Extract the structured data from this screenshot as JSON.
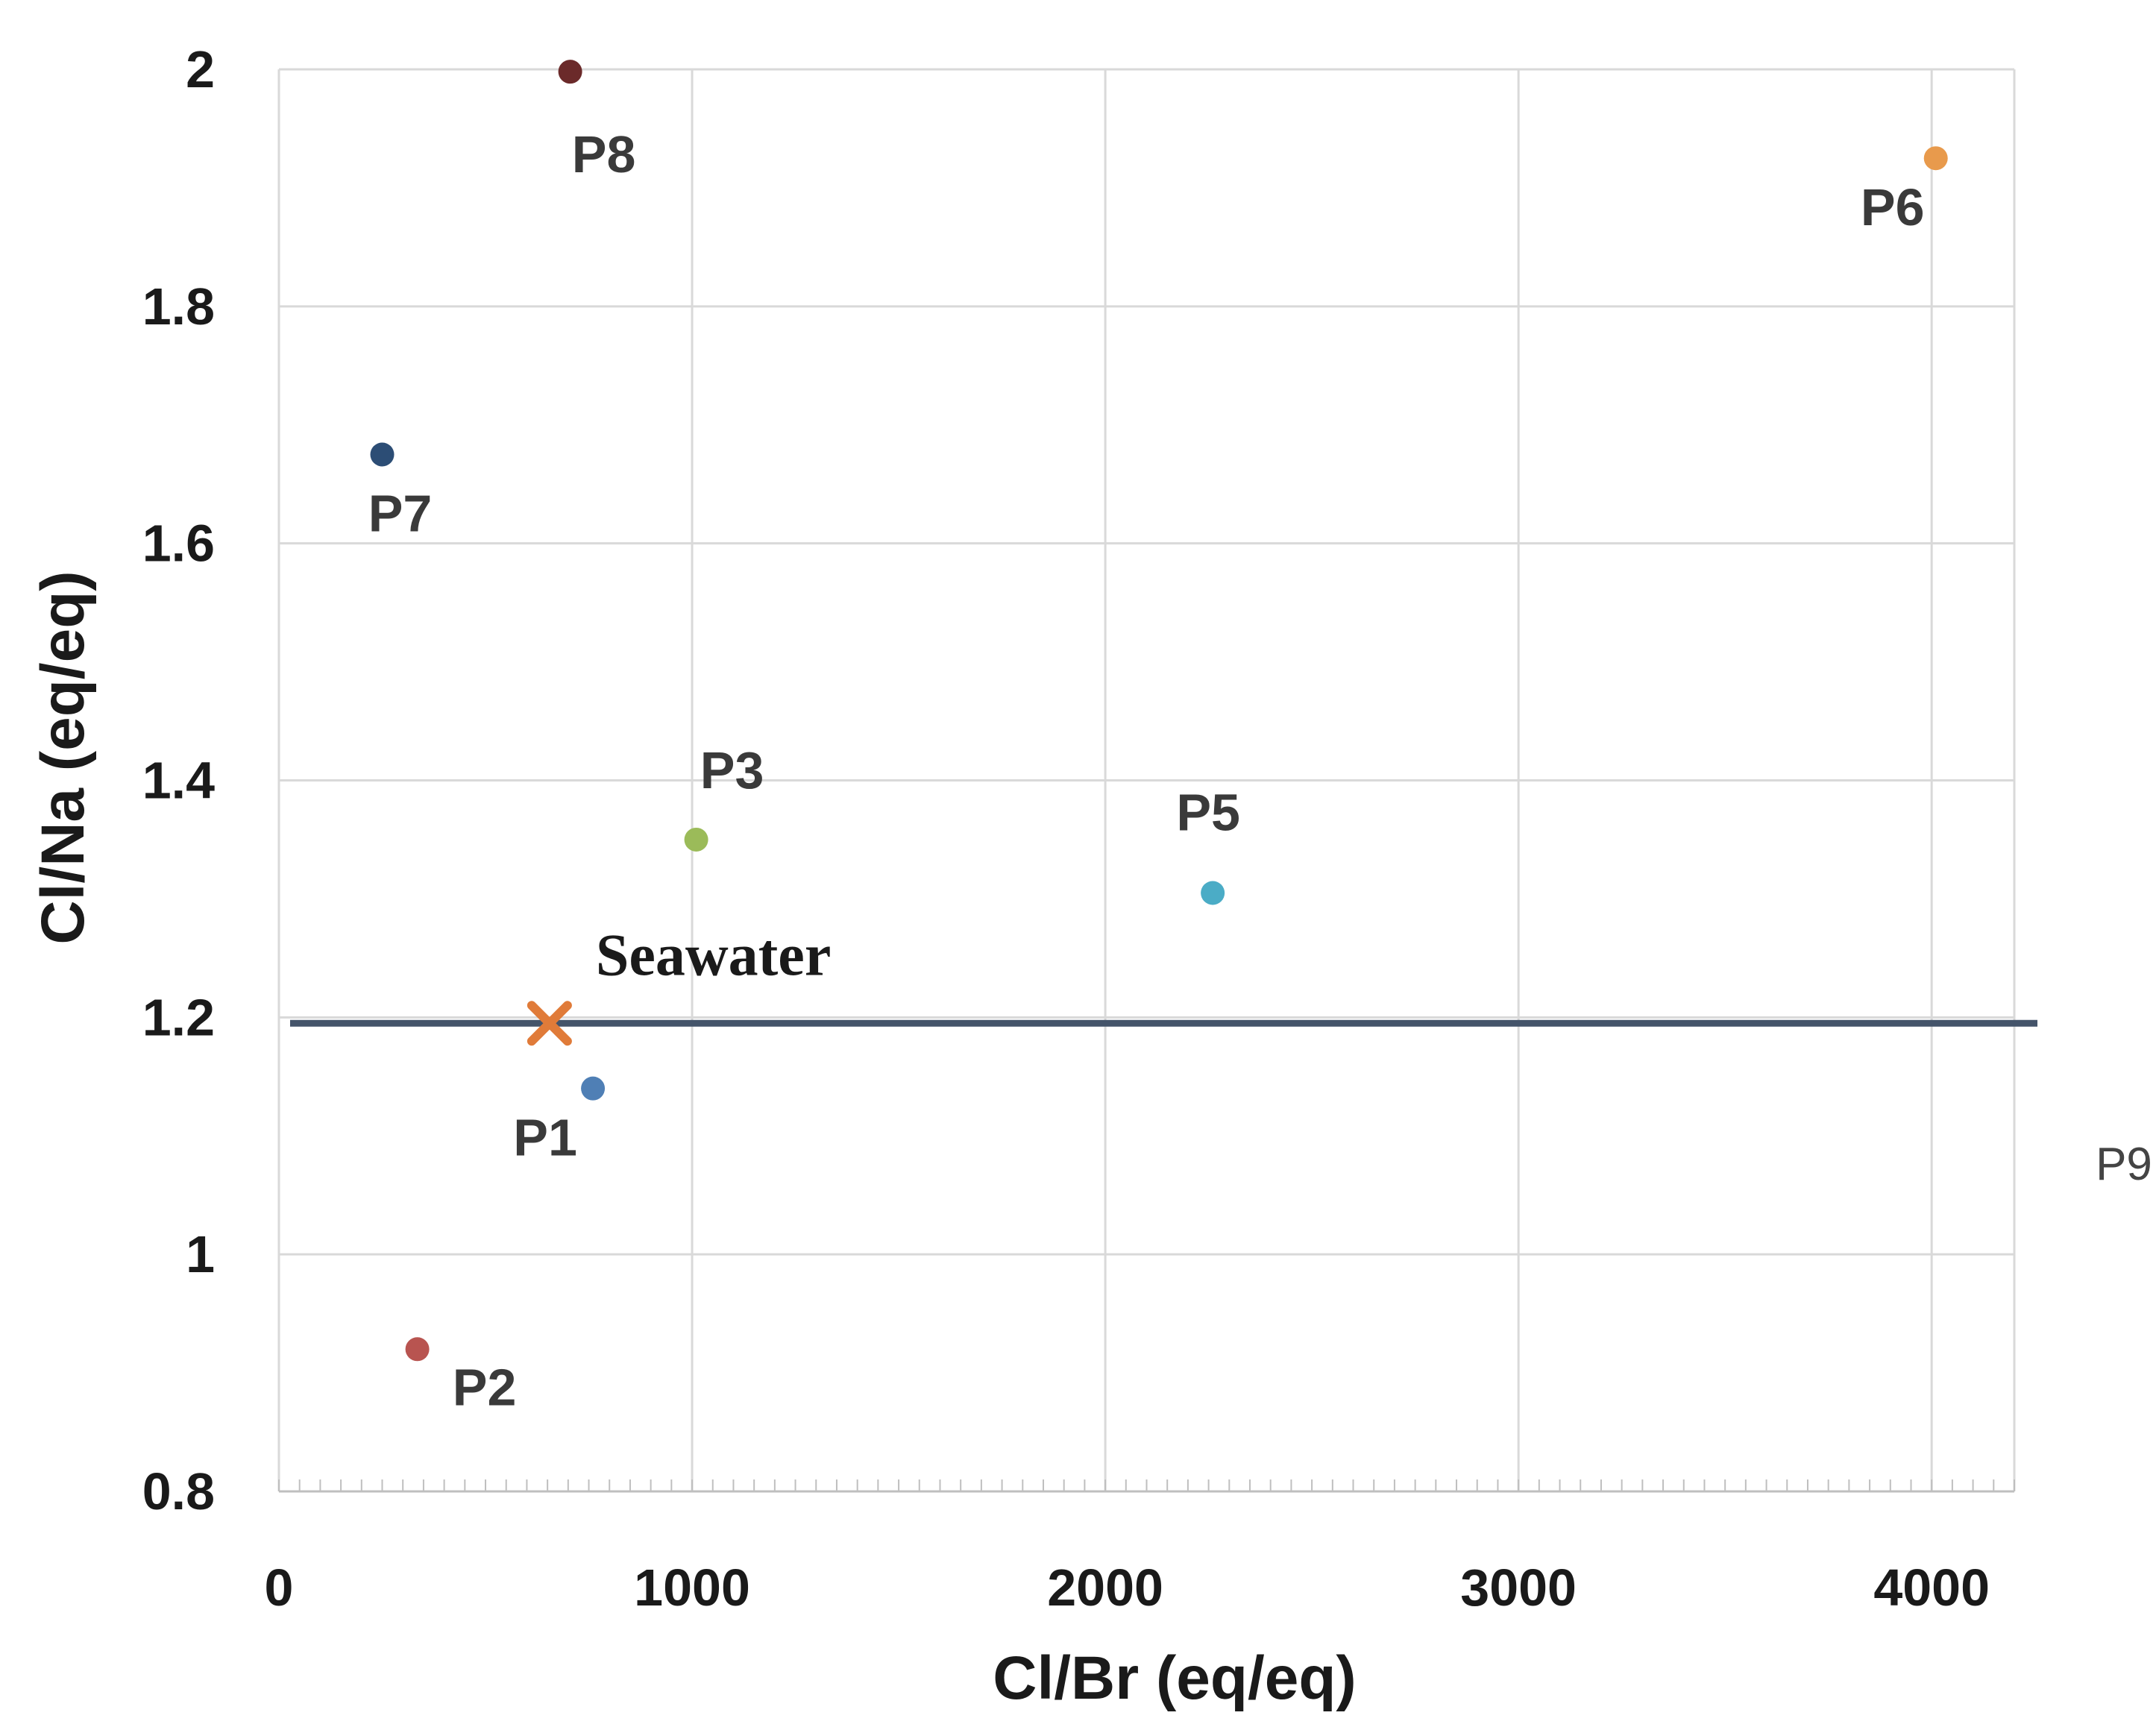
{
  "chart_data": {
    "type": "scatter",
    "title": "",
    "xlabel": "Cl/Br (eq/eq)",
    "ylabel": "Cl/Na  (eq/eq)",
    "xlim": [
      0,
      4200
    ],
    "ylim": [
      0.8,
      2.0
    ],
    "x_ticks": [
      0,
      1000,
      2000,
      3000,
      4000
    ],
    "x_tick_labels": [
      "0",
      "1000",
      "2000",
      "3000",
      "4000"
    ],
    "y_ticks": [
      0.8,
      1.0,
      1.2,
      1.4,
      1.6,
      1.8,
      2.0
    ],
    "y_tick_labels": [
      "0.8",
      "1",
      "1.2",
      "1.4",
      "1.6",
      "1.8",
      "2"
    ],
    "grid": true,
    "legend": "none",
    "points": [
      {
        "label": "P1",
        "x": 760,
        "y": 1.14,
        "color": "#4f7fb5"
      },
      {
        "label": "P2",
        "x": 335,
        "y": 0.92,
        "color": "#b85450"
      },
      {
        "label": "P3",
        "x": 1010,
        "y": 1.35,
        "color": "#9bbb59"
      },
      {
        "label": "P5",
        "x": 2260,
        "y": 1.305,
        "color": "#4bacc6"
      },
      {
        "label": "P6",
        "x": 4010,
        "y": 1.925,
        "color": "#e89a4c"
      },
      {
        "label": "P7",
        "x": 250,
        "y": 1.675,
        "color": "#2c4d75"
      },
      {
        "label": "P8",
        "x": 705,
        "y": 1.998,
        "color": "#6b2a2a"
      }
    ],
    "seawater": {
      "label": "Seawater",
      "x": 655,
      "y": 1.195,
      "color": "#e07b39",
      "marker": "x"
    },
    "reference_line": {
      "y": 1.195,
      "color": "#44546a"
    },
    "orphan_label": "P9"
  }
}
